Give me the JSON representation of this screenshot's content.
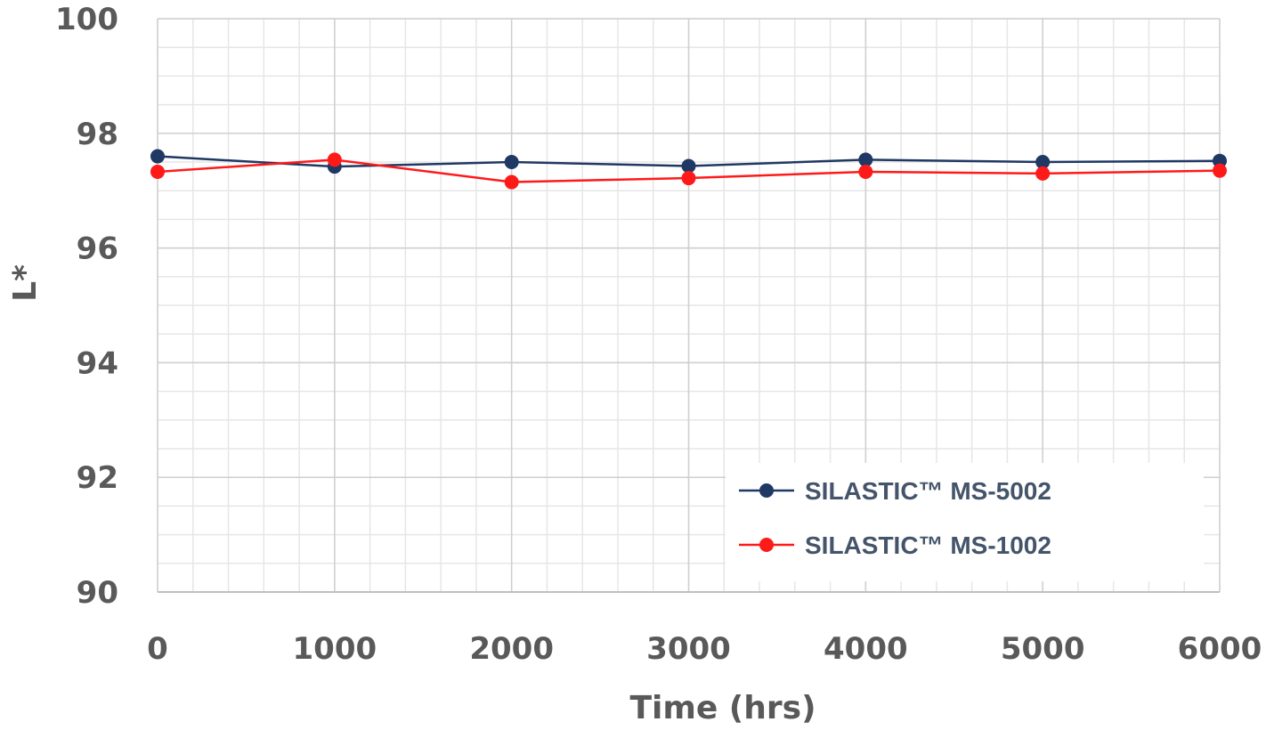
{
  "chart_data": {
    "type": "line",
    "title": "",
    "xlabel": "Time (hrs)",
    "ylabel": "L*",
    "x": [
      0,
      1000,
      2000,
      3000,
      4000,
      5000,
      6000
    ],
    "xlim": [
      0,
      6000
    ],
    "ylim": [
      90,
      100
    ],
    "xticks": [
      0,
      1000,
      2000,
      3000,
      4000,
      5000,
      6000
    ],
    "yticks": [
      90,
      92,
      94,
      96,
      98,
      100
    ],
    "x_tick_labels": [
      "0",
      "1000",
      "2000",
      "3000",
      "4000",
      "5000",
      "6000"
    ],
    "y_tick_labels": [
      "90",
      "92",
      "94",
      "96",
      "98",
      "100"
    ],
    "grid": true,
    "legend_position": "bottom-right",
    "series": [
      {
        "name": "SILASTIC™ MS-5002",
        "color": "#1f3864",
        "values": [
          97.6,
          97.42,
          97.5,
          97.43,
          97.54,
          97.5,
          97.52
        ]
      },
      {
        "name": "SILASTIC™ MS-1002",
        "color": "#ff1a1a",
        "values": [
          97.33,
          97.54,
          97.15,
          97.22,
          97.33,
          97.3,
          97.35
        ]
      }
    ]
  }
}
